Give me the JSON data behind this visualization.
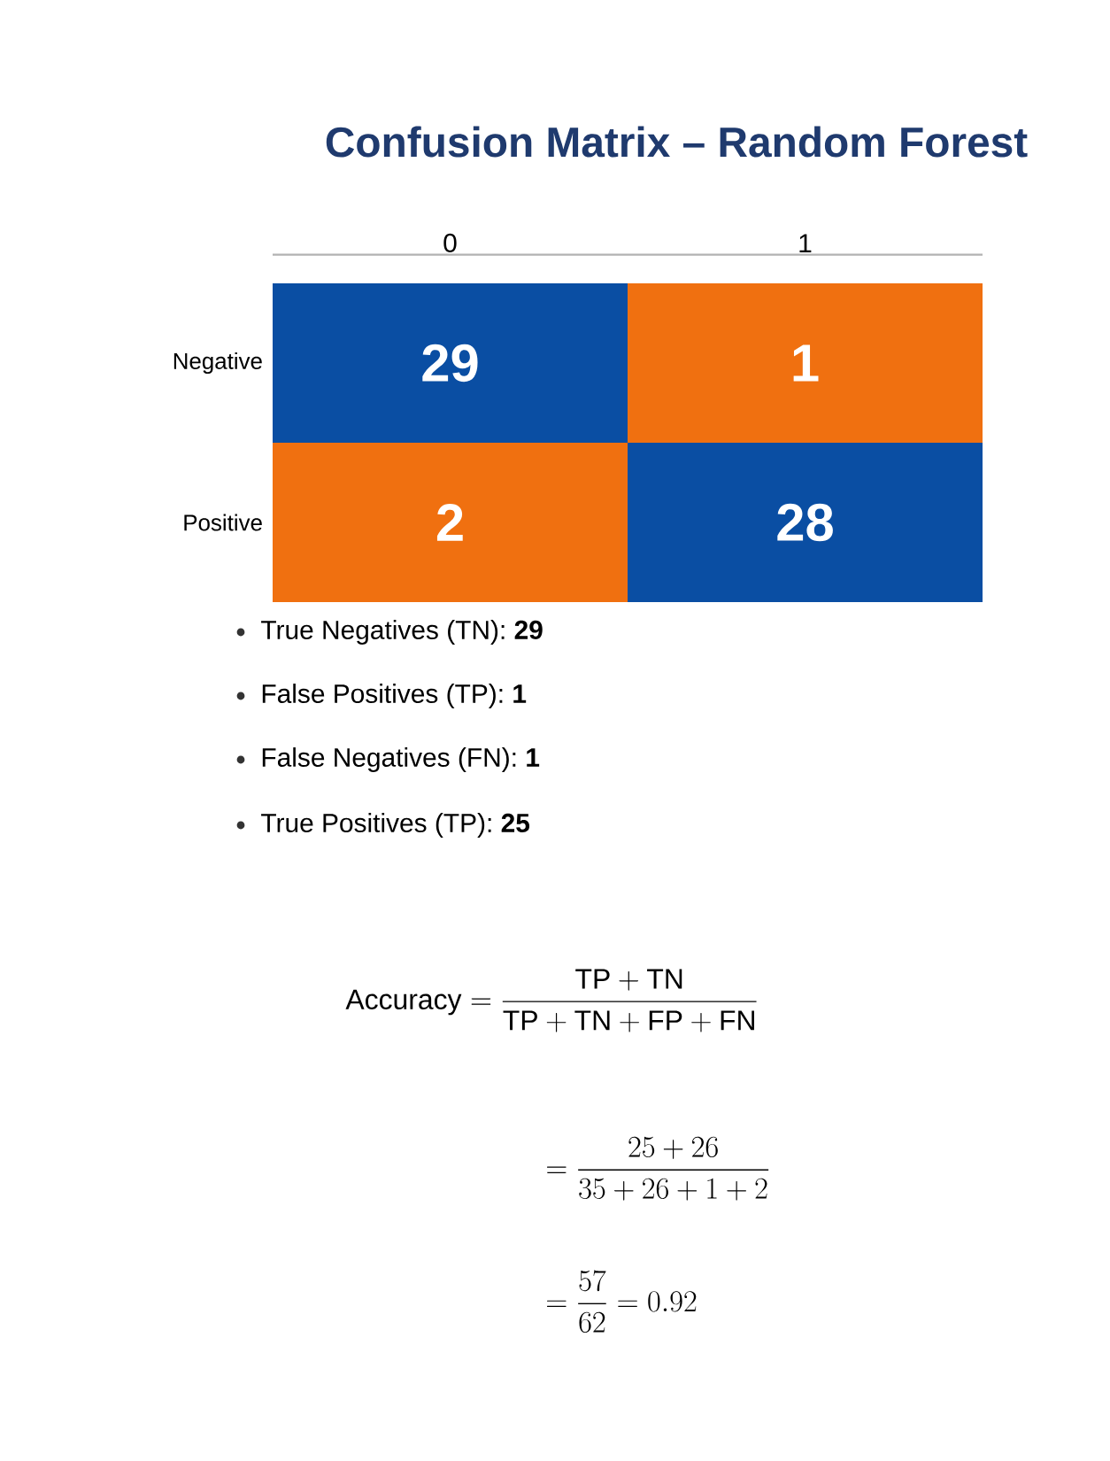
{
  "chart_data": {
    "type": "heatmap",
    "title": "Confusion Matrix – Random Forest",
    "categories": [
      "0",
      "1"
    ],
    "y_categories": [
      "Negative",
      "Positive"
    ],
    "cells": [
      [
        29,
        1
      ],
      [
        2,
        28
      ]
    ],
    "colors": [
      [
        "#0a4ea3",
        "#f07010"
      ],
      [
        "#f07010",
        "#0a4ea3"
      ]
    ],
    "data_labels": true,
    "annotations": [
      "True Negatives (TN): **29**",
      "False Positives (TP): **1**",
      "False Negatives (FN): **1**",
      "True Positives (TP): **25**",
      "\\mathrm{Accuracy} = \\frac{\\mathrm{TP} + \\mathrm{TN}}{\\mathrm{TP} + \\mathrm{TN} + \\mathrm{FP} + \\mathrm{FN}}",
      "= \\frac{25 + 26}{35 + 26 + 1 + 2}",
      "= \\frac{57}{62} = 0.92"
    ]
  }
}
